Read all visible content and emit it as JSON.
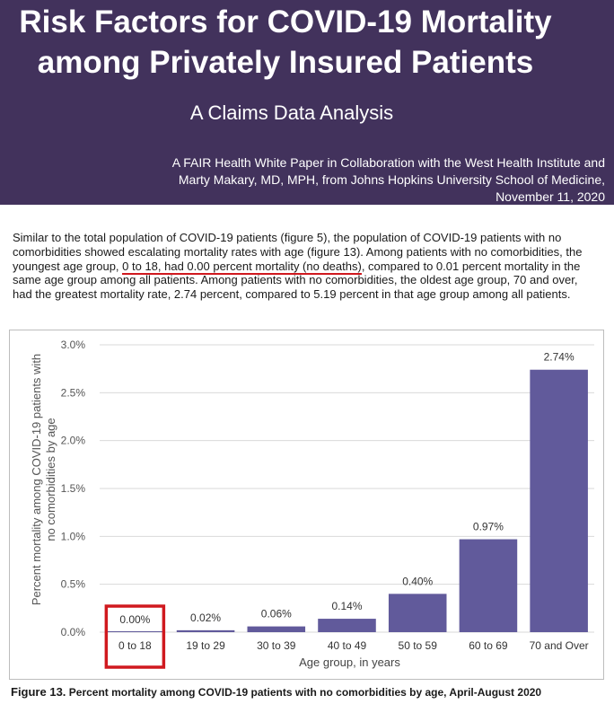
{
  "header": {
    "title_line1": "Risk Factors for COVID-19 Mortality",
    "title_line2": "among Privately Insured Patients",
    "subtitle": "A Claims Data Analysis",
    "byline_line1": "A FAIR Health White Paper in Collaboration with the West Health Institute and",
    "byline_line2": "Marty Makary, MD, MPH, from Johns Hopkins University School of Medicine,",
    "date": "November 11, 2020"
  },
  "body": {
    "text_before": "Similar to the total population of COVID-19 patients (figure 5), the population of COVID-19 patients with no comorbidities showed escalating mortality rates with age (figure 13). Among patients with no comorbidities, the youngest age group, ",
    "text_highlight": "0 to 18, had 0.00 percent mortality (no deaths)",
    "text_after": ", compared to 0.01 percent mortality in the same age group among all patients. Among patients with no comorbidities, the oldest age group, 70 and over, had the greatest mortality rate, 2.74 percent, compared to 5.19 percent in that age group among all patients."
  },
  "caption": {
    "figure_number": "Figure 13.",
    "text": "Percent mortality among COVID-19 patients with no comorbidities by age, April-August 2020"
  },
  "colors": {
    "banner": "#42325c",
    "bar": "#615a9b",
    "highlight": "#d0191f"
  },
  "chart_data": {
    "type": "bar",
    "categories": [
      "0 to 18",
      "19 to 29",
      "30 to 39",
      "40 to 49",
      "50 to 59",
      "60 to 69",
      "70 and Over"
    ],
    "values": [
      0.0,
      0.02,
      0.06,
      0.14,
      0.4,
      0.97,
      2.74
    ],
    "value_labels": [
      "0.00%",
      "0.02%",
      "0.06%",
      "0.14%",
      "0.40%",
      "0.97%",
      "2.74%"
    ],
    "y_ticks": [
      0,
      0.5,
      1.0,
      1.5,
      2.0,
      2.5,
      3.0
    ],
    "y_tick_labels": [
      "0.0%",
      "0.5%",
      "1.0%",
      "1.5%",
      "2.0%",
      "2.5%",
      "3.0%"
    ],
    "ylim": [
      0,
      3.0
    ],
    "xlabel": "Age group, in years",
    "ylabel_line1": "Percent mortality among COVID-19 patients with",
    "ylabel_line2": "no comorbidities by age",
    "highlighted_category": "0 to 18",
    "grid": "horizontal",
    "legend": "none"
  }
}
